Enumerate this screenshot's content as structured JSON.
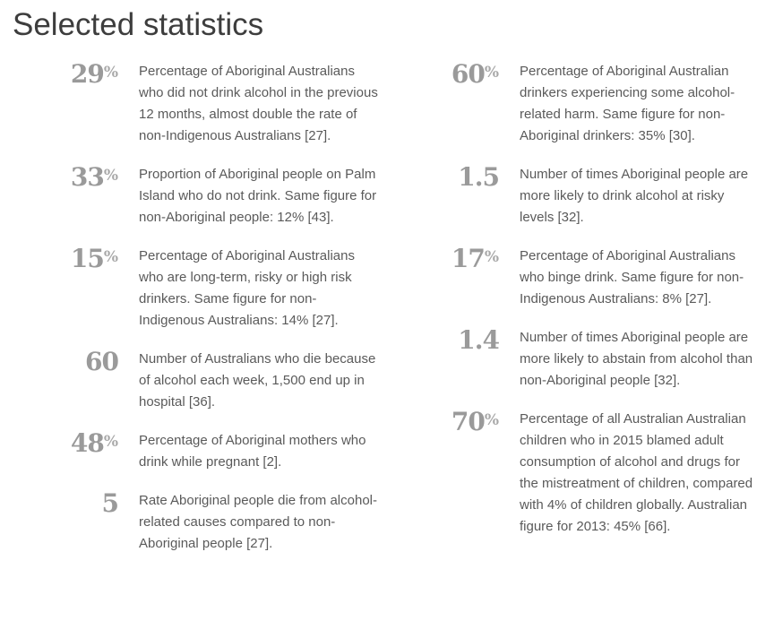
{
  "page": {
    "title": "Selected statistics"
  },
  "colors": {
    "title_text": "#3d3d3d",
    "stat_number": "#9a9a9a",
    "stat_suffix": "#a9a9a9",
    "body_text": "#5a5a5a",
    "background": "#ffffff"
  },
  "columns": [
    {
      "items": [
        {
          "value": "29",
          "suffix": "%",
          "text": "Percentage of Aboriginal Australians who did not drink alcohol in the previous 12 months, almost double the rate of non-Indigenous Australians [27]."
        },
        {
          "value": "33",
          "suffix": "%",
          "text": "Proportion of Aboriginal people on Palm Island who do not drink. Same figure for non-Aboriginal people: 12% [43]."
        },
        {
          "value": "15",
          "suffix": "%",
          "text": "Percentage of Aboriginal Australians who are long-term, risky or high risk drinkers. Same figure for non-Indigenous Australians: 14% [27]."
        },
        {
          "value": "60",
          "suffix": "",
          "text": "Number of Australians who die because of alcohol each week, 1,500 end up in hospital [36]."
        },
        {
          "value": "48",
          "suffix": "%",
          "text": "Percentage of Aboriginal mothers who drink while pregnant [2]."
        },
        {
          "value": "5",
          "suffix": "",
          "text": "Rate Aboriginal people die from alcohol-related causes compared to non-Aboriginal people [27]."
        }
      ]
    },
    {
      "items": [
        {
          "value": "60",
          "suffix": "%",
          "text": "Percentage of Aboriginal Australian drinkers experiencing some alcohol-related harm. Same figure for non-Aboriginal drinkers: 35% [30]."
        },
        {
          "value": "1.5",
          "suffix": "",
          "text": "Number of times Aboriginal people are more likely to drink alcohol at risky levels [32]."
        },
        {
          "value": "17",
          "suffix": "%",
          "text": "Percentage of Aboriginal Australians who binge drink. Same figure for non-Indigenous Australians: 8% [27]."
        },
        {
          "value": "1.4",
          "suffix": "",
          "text": "Number of times Aboriginal people are more likely to abstain from alcohol than non-Aboriginal people [32]."
        },
        {
          "value": "70",
          "suffix": "%",
          "text": "Percentage of all Australian Australian children who in 2015 blamed adult consumption of alcohol and drugs for the mistreatment of children, compared with 4% of children globally. Australian figure for 2013: 45% [66]."
        }
      ]
    }
  ]
}
